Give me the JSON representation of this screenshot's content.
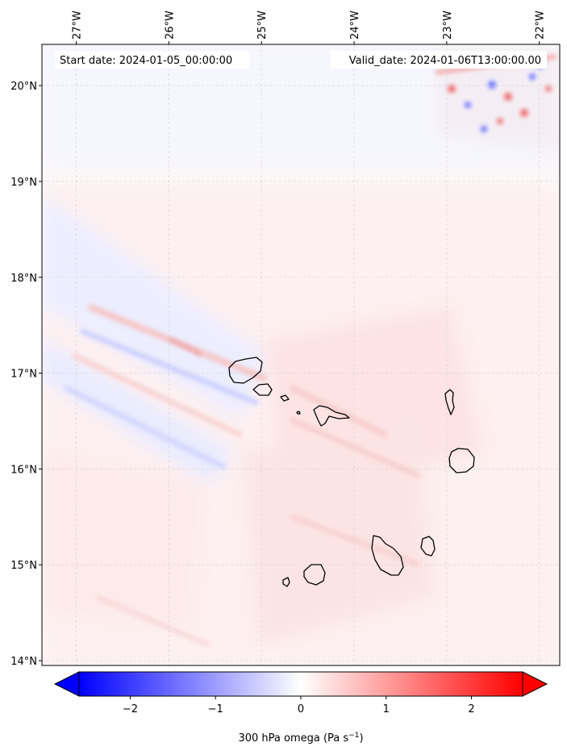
{
  "header": {
    "start_date": "Start date: 2024-01-05_00:00:00",
    "valid_date": "Valid_date: 2024-01-06T13:00:00.00"
  },
  "map": {
    "lon_ticks": [
      {
        "value": -27,
        "label": "27°W"
      },
      {
        "value": -26,
        "label": "26°W"
      },
      {
        "value": -25,
        "label": "25°W"
      },
      {
        "value": -24,
        "label": "24°W"
      },
      {
        "value": -23,
        "label": "23°W"
      },
      {
        "value": -22,
        "label": "22°W"
      }
    ],
    "lat_ticks": [
      {
        "value": 14,
        "label": "14°N"
      },
      {
        "value": 15,
        "label": "15°N"
      },
      {
        "value": 16,
        "label": "16°N"
      },
      {
        "value": 17,
        "label": "17°N"
      },
      {
        "value": 18,
        "label": "18°N"
      },
      {
        "value": 19,
        "label": "19°N"
      },
      {
        "value": 20,
        "label": "20°N"
      }
    ],
    "extent": {
      "lon_min": -27.37,
      "lon_max": -21.78,
      "lat_min": 13.95,
      "lat_max": 20.43
    },
    "gridlines": true,
    "coastlines": "black",
    "islands": [
      "Santo Antão",
      "São Vicente",
      "Santa Luzia",
      "Branco",
      "São Nicolau",
      "Sal",
      "Boa Vista",
      "Maio",
      "Santiago",
      "Fogo",
      "Brava"
    ]
  },
  "colorbar": {
    "label": "300 hPa omega (Pa s",
    "label_sup": "−1",
    "label_close": ")",
    "min": -2.6,
    "max": 2.6,
    "ticks": [
      {
        "value": -2,
        "label": "−2"
      },
      {
        "value": -1,
        "label": "−1"
      },
      {
        "value": 0,
        "label": "0"
      },
      {
        "value": 1,
        "label": "1"
      },
      {
        "value": 2,
        "label": "2"
      }
    ],
    "colormap": "bwr",
    "extend": "both",
    "low_color": "#0000ff",
    "mid_color": "#ffffff",
    "high_color": "#ff0000"
  }
}
